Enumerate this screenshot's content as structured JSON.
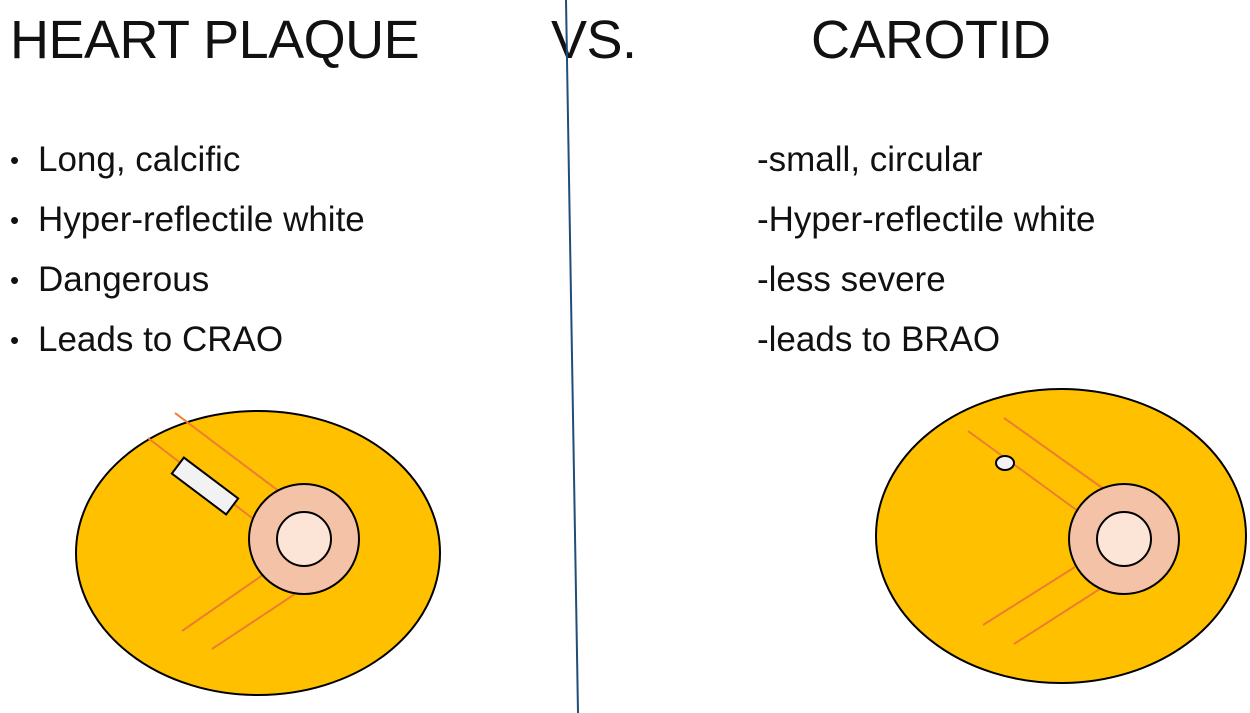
{
  "titles": {
    "left": "HEART PLAQUE",
    "middle": "VS.",
    "right": "CAROTID"
  },
  "heart_plaque": {
    "bullet_symbol": "•",
    "items": [
      "Long, calcific",
      "Hyper-reflectile white",
      "Dangerous",
      "Leads to CRAO"
    ]
  },
  "carotid": {
    "items": [
      "-small, circular",
      "-Hyper-reflectile white",
      "-less severe",
      "-leads to BRAO"
    ]
  },
  "colors": {
    "retina_fill": "#FFC000",
    "disc_outer": "#F4C2A6",
    "disc_inner": "#FCE4D6",
    "vessel": "#ED7D31",
    "plaque": "#F2F2F2",
    "divider": "#1F4E79",
    "outline": "#000000"
  },
  "icons": {
    "left_fundus": "retina-diagram-with-long-plaque",
    "right_fundus": "retina-diagram-with-circular-plaque"
  }
}
